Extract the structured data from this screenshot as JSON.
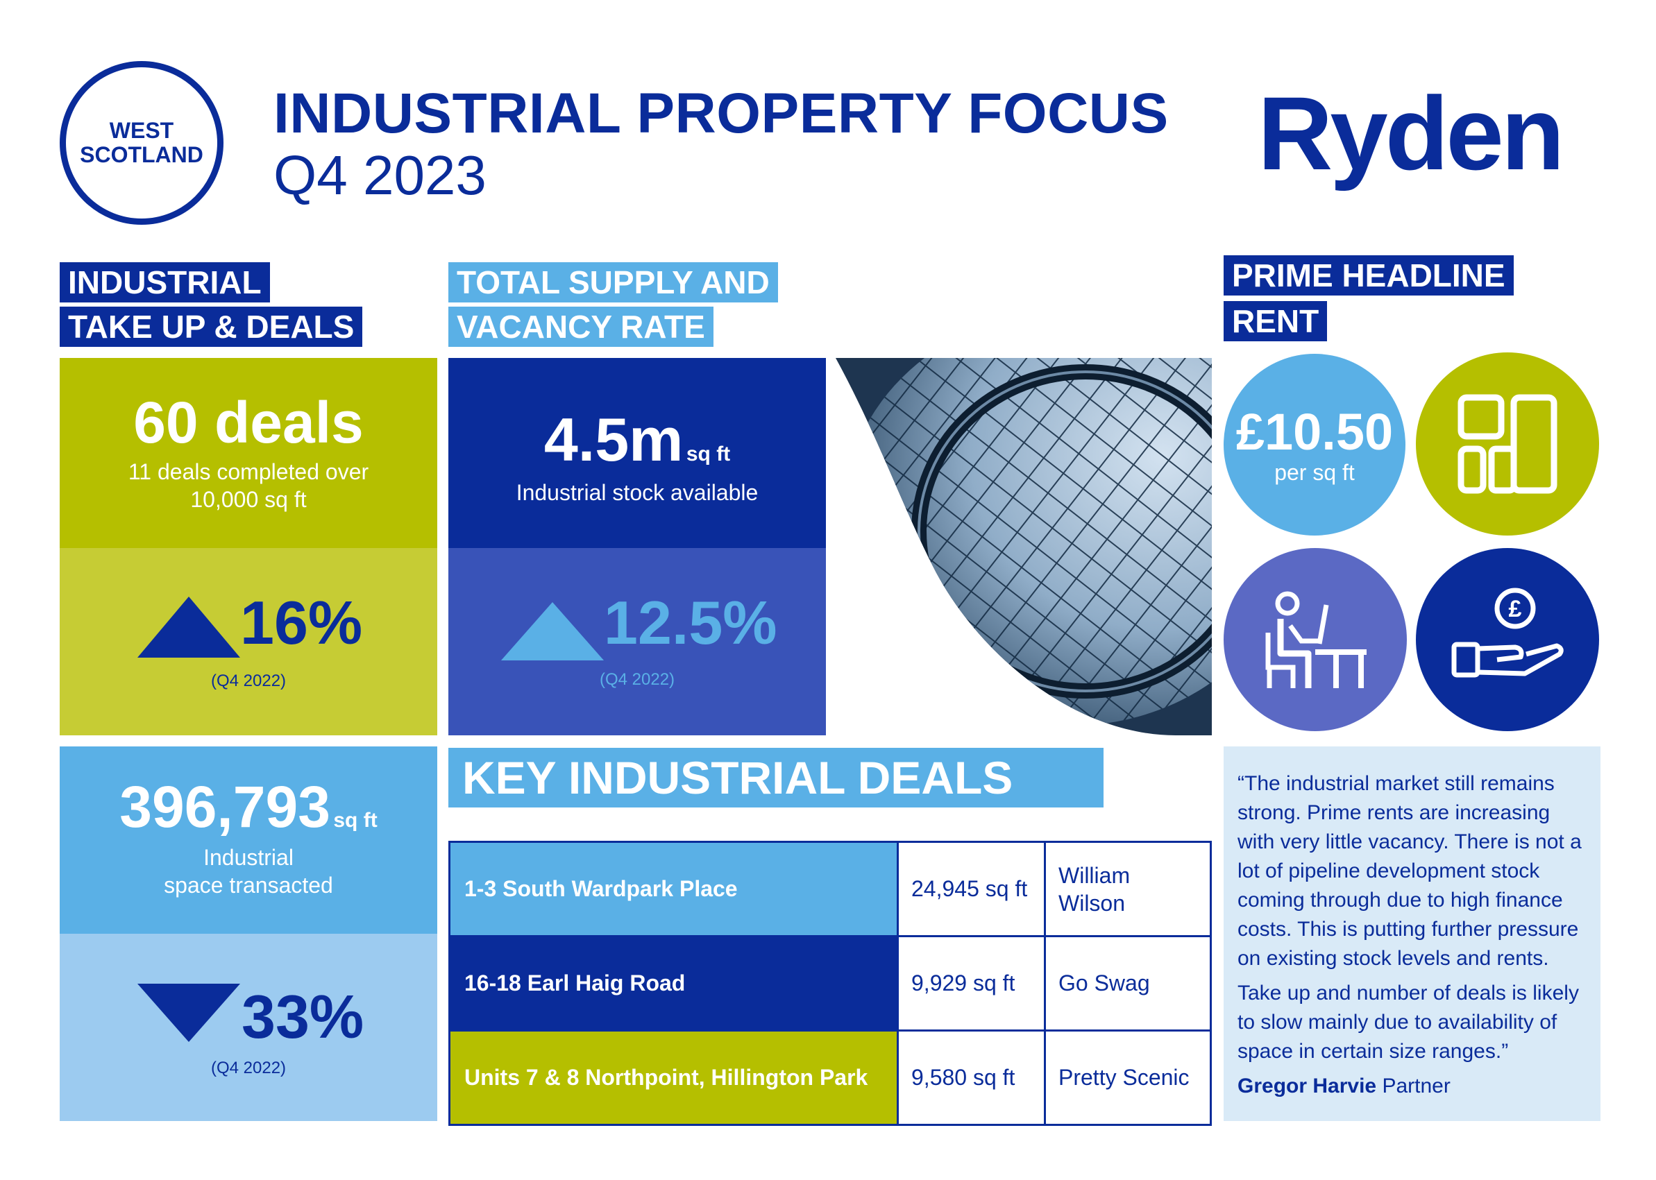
{
  "header": {
    "region_line1": "WEST",
    "region_line2": "SCOTLAND",
    "title": "INDUSTRIAL PROPERTY FOCUS",
    "subtitle": "Q4 2023",
    "logo": "Ryden"
  },
  "takeup": {
    "heading_line1": "INDUSTRIAL",
    "heading_line2": "TAKE UP & DEALS",
    "deals_value": "60 deals",
    "deals_note_line1": "11 deals completed over",
    "deals_note_line2": "10,000 sq ft",
    "deals_change": "16%",
    "deals_change_direction": "up",
    "deals_change_period": "(Q4 2022)",
    "space_value": "396,793",
    "space_unit": "sq ft",
    "space_note_line1": "Industrial",
    "space_note_line2": "space transacted",
    "space_change": "33%",
    "space_change_direction": "down",
    "space_change_period": "(Q4 2022)"
  },
  "supply": {
    "heading_line1": "TOTAL SUPPLY AND",
    "heading_line2": "VACANCY RATE",
    "stock_value": "4.5m",
    "stock_unit": "sq ft",
    "stock_note": "Industrial stock available",
    "vacancy_value": "12.5%",
    "vacancy_direction": "up",
    "vacancy_period": "(Q4 2022)"
  },
  "rent": {
    "heading_line1": "PRIME HEADLINE",
    "heading_line2": "RENT",
    "value": "£10.50",
    "unit": "per sq ft",
    "icons": [
      "floorplan-icon",
      "office-worker-icon",
      "pound-hand-icon"
    ]
  },
  "key_deals": {
    "heading": "KEY INDUSTRIAL DEALS",
    "rows": [
      {
        "address": "1-3 South Wardpark Place",
        "size": "24,945 sq ft",
        "tenant": "William Wilson"
      },
      {
        "address": "16-18 Earl Haig Road",
        "size": "9,929 sq ft",
        "tenant": "Go Swag"
      },
      {
        "address": "Units 7 & 8 Northpoint, Hillington Park",
        "size": "9,580 sq ft",
        "tenant": "Pretty Scenic"
      }
    ]
  },
  "quote": {
    "para1": "“The industrial market still remains strong. Prime rents are increasing with very little vacancy. There is not a lot of pipeline development stock coming through due to high finance costs. This is putting further pressure on existing stock levels and rents.",
    "para2": "Take up and number of deals is likely to slow mainly due to availability of space in certain size ranges.”",
    "author": "Gregor Harvie",
    "role": "Partner"
  },
  "colors": {
    "navy": "#0a2c9a",
    "royal": "#3953b8",
    "sky": "#5ab0e6",
    "pale_sky": "#9ccbf0",
    "lime": "#b5bf00",
    "pale_lime": "#c6cc34",
    "lavender": "#5b69c4",
    "quote_bg": "#d9eaf7"
  }
}
